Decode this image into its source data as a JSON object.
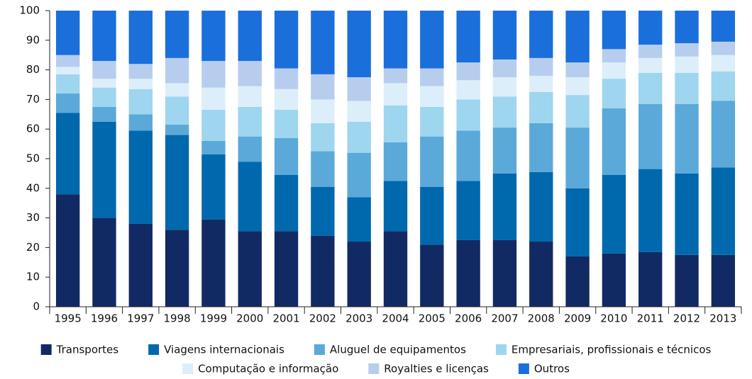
{
  "chart_data": {
    "type": "stacked_bar",
    "categories": [
      "1995",
      "1996",
      "1997",
      "1998",
      "1999",
      "2000",
      "2001",
      "2002",
      "2003",
      "2004",
      "2005",
      "2006",
      "2007",
      "2008",
      "2009",
      "2010",
      "2011",
      "2012",
      "2013"
    ],
    "series": [
      {
        "name": "Transportes",
        "color": "#122a63",
        "values": [
          38,
          30,
          28,
          26,
          29.5,
          25.5,
          25.5,
          24,
          22,
          25.5,
          21,
          22.5,
          22.5,
          22,
          17,
          18,
          18.5,
          17.5,
          17.5
        ]
      },
      {
        "name": "Viagens internacionais",
        "color": "#0068ad",
        "values": [
          27.5,
          32.5,
          31.5,
          32,
          22,
          23.5,
          19,
          16.5,
          15,
          17,
          19.5,
          20,
          22.5,
          23.5,
          23,
          26.5,
          28,
          27.5,
          29.5
        ]
      },
      {
        "name": "Aluguel de equipamentos",
        "color": "#5aa9d8",
        "values": [
          6.5,
          5,
          5.5,
          3.5,
          4.5,
          8.5,
          12.5,
          12,
          15,
          13,
          17,
          17,
          15.5,
          16.5,
          20.5,
          22.5,
          22,
          23.5,
          22.5
        ]
      },
      {
        "name": "Empresariais, profissionais e técnicos",
        "color": "#9ed5ef",
        "values": [
          6.5,
          6.5,
          8.5,
          9.5,
          10.5,
          10,
          9.5,
          9.5,
          10.5,
          12.5,
          10,
          10.5,
          10.5,
          10.5,
          11,
          10,
          10.5,
          10.5,
          10
        ]
      },
      {
        "name": "Computação e informação",
        "color": "#dceefa",
        "values": [
          2.5,
          3,
          3.5,
          4.5,
          7.5,
          7,
          7,
          8,
          7,
          7.5,
          7,
          6.5,
          6.5,
          5.5,
          6,
          5.5,
          5,
          5.5,
          5.5
        ]
      },
      {
        "name": "Royalties e licenças",
        "color": "#b7cdee",
        "values": [
          4,
          6,
          5,
          8.5,
          9,
          8.5,
          7,
          8.5,
          8,
          5,
          6,
          6,
          6,
          6,
          5,
          4.5,
          4.5,
          4.5,
          4.5
        ]
      },
      {
        "name": "Outros",
        "color": "#1a6fdb",
        "values": [
          15,
          17,
          18,
          16,
          17,
          17,
          19.5,
          21.5,
          22.5,
          19.5,
          19.5,
          17.5,
          16.5,
          16,
          17.5,
          13,
          11.5,
          11,
          10.5
        ]
      }
    ],
    "ylim": [
      0,
      100
    ],
    "yticks": [
      0,
      10,
      20,
      30,
      40,
      50,
      60,
      70,
      80,
      90,
      100
    ]
  }
}
